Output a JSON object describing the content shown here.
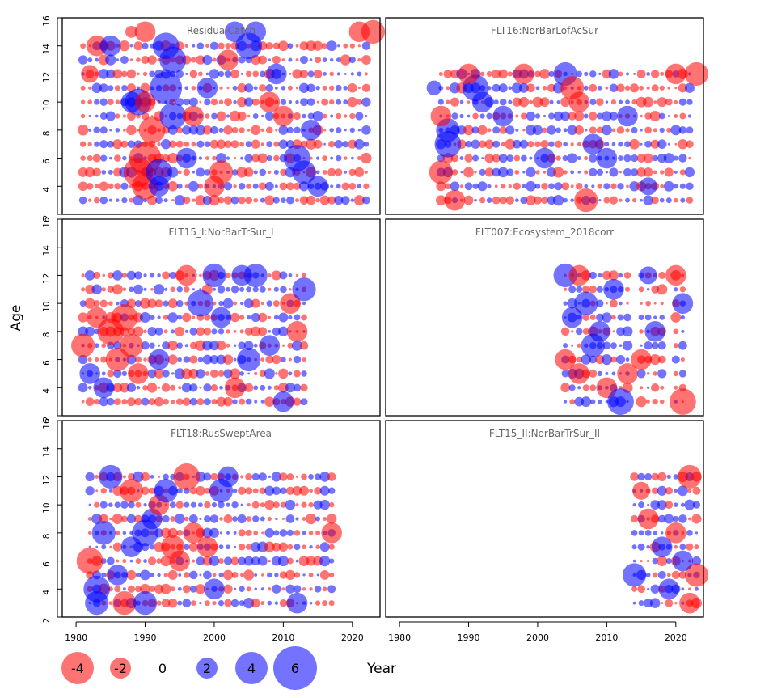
{
  "chart_data": {
    "type": "scatter",
    "title": "",
    "xlabel": "Year",
    "ylabel": "Age",
    "xlim": [
      1978,
      2024
    ],
    "ylim": [
      2,
      16
    ],
    "x_ticks": [
      "1980",
      "1990",
      "2000",
      "2010",
      "2020"
    ],
    "y_ticks": [
      "2",
      "4",
      "6",
      "8",
      "10",
      "12",
      "14",
      "16"
    ],
    "colors": {
      "negative": "#ff0000",
      "positive": "#0000ff",
      "alpha": 0.55
    },
    "legend": {
      "position": "bottom-left",
      "entries": [
        {
          "label": "-4",
          "value": -4
        },
        {
          "label": "-2",
          "value": -2
        },
        {
          "label": "0",
          "value": 0
        },
        {
          "label": "2",
          "value": 2
        },
        {
          "label": "4",
          "value": 4
        },
        {
          "label": "6",
          "value": 6
        }
      ]
    },
    "panels": [
      {
        "name": "ResidualCatch",
        "ages": [
          3,
          14
        ],
        "fill_years": [
          1981,
          2022
        ],
        "highlights": [
          [
            1983,
            14,
            -3
          ],
          [
            1985,
            14,
            3
          ],
          [
            1988,
            15,
            -1.5
          ],
          [
            1990,
            15,
            -3
          ],
          [
            1989,
            10,
            4
          ],
          [
            1988,
            10,
            3
          ],
          [
            1990,
            6,
            -5
          ],
          [
            1990,
            4,
            -4
          ],
          [
            1989,
            5,
            -4.5
          ],
          [
            1991,
            8,
            -4
          ],
          [
            1990,
            10,
            -3
          ],
          [
            1992,
            5,
            4
          ],
          [
            1993,
            14,
            4
          ],
          [
            1994,
            13,
            4
          ],
          [
            1993,
            11,
            5
          ],
          [
            1994,
            9,
            4
          ],
          [
            1992,
            4,
            3
          ],
          [
            1996,
            6,
            3
          ],
          [
            1997,
            9,
            -3
          ],
          [
            1999,
            11,
            3
          ],
          [
            2000,
            4,
            -3
          ],
          [
            2001,
            5,
            -3.5
          ],
          [
            2002,
            13,
            -3
          ],
          [
            2003,
            15,
            3
          ],
          [
            2005,
            14,
            4
          ],
          [
            2006,
            15,
            3
          ],
          [
            2008,
            10,
            -3
          ],
          [
            2009,
            12,
            3
          ],
          [
            2010,
            9,
            -3
          ],
          [
            2012,
            6,
            4
          ],
          [
            2013,
            5,
            3.5
          ],
          [
            2014,
            8,
            3
          ],
          [
            2015,
            4,
            3
          ],
          [
            2021,
            15,
            -3
          ],
          [
            2023,
            15,
            -3.5
          ],
          [
            1982,
            12,
            -2.5
          ]
        ]
      },
      {
        "name": "FLT16:NorBarLofAcSur",
        "ages": [
          3,
          12
        ],
        "fill_years": [
          1986,
          2022
        ],
        "highlights": [
          [
            1986,
            5,
            -3.5
          ],
          [
            1987,
            7,
            4
          ],
          [
            1987,
            8,
            3.5
          ],
          [
            1986,
            9,
            -3
          ],
          [
            1988,
            3,
            -3
          ],
          [
            1985,
            11,
            2
          ],
          [
            1991,
            11,
            4
          ],
          [
            1992,
            10,
            3
          ],
          [
            1990,
            12,
            -3
          ],
          [
            1995,
            9,
            3
          ],
          [
            1998,
            12,
            -3
          ],
          [
            2004,
            12,
            3.5
          ],
          [
            2005,
            11,
            -3.5
          ],
          [
            2006,
            10,
            -3
          ],
          [
            2007,
            3,
            -3.5
          ],
          [
            2010,
            6,
            3
          ],
          [
            2013,
            9,
            3
          ],
          [
            2016,
            4,
            2.5
          ],
          [
            2020,
            12,
            -3
          ],
          [
            2023,
            12,
            -3.5
          ],
          [
            2001,
            6,
            3
          ],
          [
            2008,
            7,
            3
          ]
        ]
      },
      {
        "name": "FLT15_I:NorBarTrSur_I",
        "ages": [
          3,
          12
        ],
        "fill_years": [
          1981,
          2013
        ],
        "highlights": [
          [
            1981,
            7,
            -3.5
          ],
          [
            1982,
            5,
            3
          ],
          [
            1983,
            9,
            -3
          ],
          [
            1985,
            8,
            -4
          ],
          [
            1986,
            6,
            -3.5
          ],
          [
            1987,
            9,
            -4
          ],
          [
            1988,
            7,
            -3.5
          ],
          [
            1989,
            5,
            -3
          ],
          [
            1984,
            4,
            3
          ],
          [
            1992,
            6,
            3
          ],
          [
            1996,
            12,
            -3
          ],
          [
            1998,
            10,
            4
          ],
          [
            2000,
            12,
            3.5
          ],
          [
            2001,
            9,
            3
          ],
          [
            2004,
            12,
            3
          ],
          [
            2005,
            6,
            3.5
          ],
          [
            2006,
            12,
            3.5
          ],
          [
            2008,
            7,
            3
          ],
          [
            2011,
            10,
            -3
          ],
          [
            2012,
            8,
            -3
          ],
          [
            2013,
            11,
            3.5
          ],
          [
            2010,
            3,
            3
          ],
          [
            2003,
            4,
            -3
          ]
        ]
      },
      {
        "name": "FLT007:Ecosystem_2018corr",
        "ages": [
          3,
          12
        ],
        "fill_years": [
          2004,
          2021
        ],
        "skip_years": [
          2014,
          2019
        ],
        "highlights": [
          [
            2004,
            12,
            3.5
          ],
          [
            2004,
            6,
            -3
          ],
          [
            2005,
            9,
            3
          ],
          [
            2006,
            12,
            -3
          ],
          [
            2006,
            5,
            -3
          ],
          [
            2007,
            10,
            3.5
          ],
          [
            2008,
            7,
            3.5
          ],
          [
            2009,
            8,
            3
          ],
          [
            2010,
            4,
            -3
          ],
          [
            2011,
            11,
            3
          ],
          [
            2012,
            3,
            4
          ],
          [
            2013,
            5,
            -3
          ],
          [
            2015,
            6,
            -3
          ],
          [
            2017,
            8,
            3
          ],
          [
            2020,
            12,
            -3
          ],
          [
            2021,
            10,
            3
          ],
          [
            2021,
            3,
            -4
          ],
          [
            2016,
            12,
            2.5
          ]
        ]
      },
      {
        "name": "FLT18:RusSweptArea",
        "ages": [
          3,
          12
        ],
        "fill_years": [
          1982,
          2017
        ],
        "highlights": [
          [
            1982,
            6,
            -4
          ],
          [
            1983,
            3,
            3.5
          ],
          [
            1983,
            4,
            4
          ],
          [
            1984,
            8,
            3.5
          ],
          [
            1985,
            12,
            3.5
          ],
          [
            1986,
            5,
            3
          ],
          [
            1987,
            3,
            -3.5
          ],
          [
            1988,
            7,
            3
          ],
          [
            1988,
            11,
            -3.5
          ],
          [
            1990,
            8,
            4
          ],
          [
            1991,
            9,
            3
          ],
          [
            1992,
            10,
            -3
          ],
          [
            1993,
            11,
            3.5
          ],
          [
            1994,
            7,
            -3.5
          ],
          [
            1995,
            6,
            -3
          ],
          [
            1996,
            12,
            -4
          ],
          [
            1997,
            8,
            -3
          ],
          [
            1999,
            7,
            -3
          ],
          [
            2000,
            4,
            3
          ],
          [
            2001,
            11,
            3.5
          ],
          [
            2002,
            12,
            3
          ],
          [
            1990,
            3,
            3.5
          ],
          [
            2012,
            3,
            3
          ],
          [
            2017,
            8,
            -3
          ]
        ]
      },
      {
        "name": "FLT15_II:NorBarTrSur_II",
        "ages": [
          3,
          12
        ],
        "fill_years": [
          2014,
          2023
        ],
        "highlights": [
          [
            2014,
            5,
            3.5
          ],
          [
            2016,
            9,
            -3
          ],
          [
            2018,
            7,
            3
          ],
          [
            2020,
            8,
            -3
          ],
          [
            2022,
            12,
            -3.5
          ],
          [
            2023,
            5,
            -3.5
          ],
          [
            2022,
            3,
            -3
          ],
          [
            2019,
            4,
            3
          ],
          [
            2015,
            11,
            -2.5
          ],
          [
            2021,
            6,
            3
          ]
        ]
      }
    ]
  }
}
